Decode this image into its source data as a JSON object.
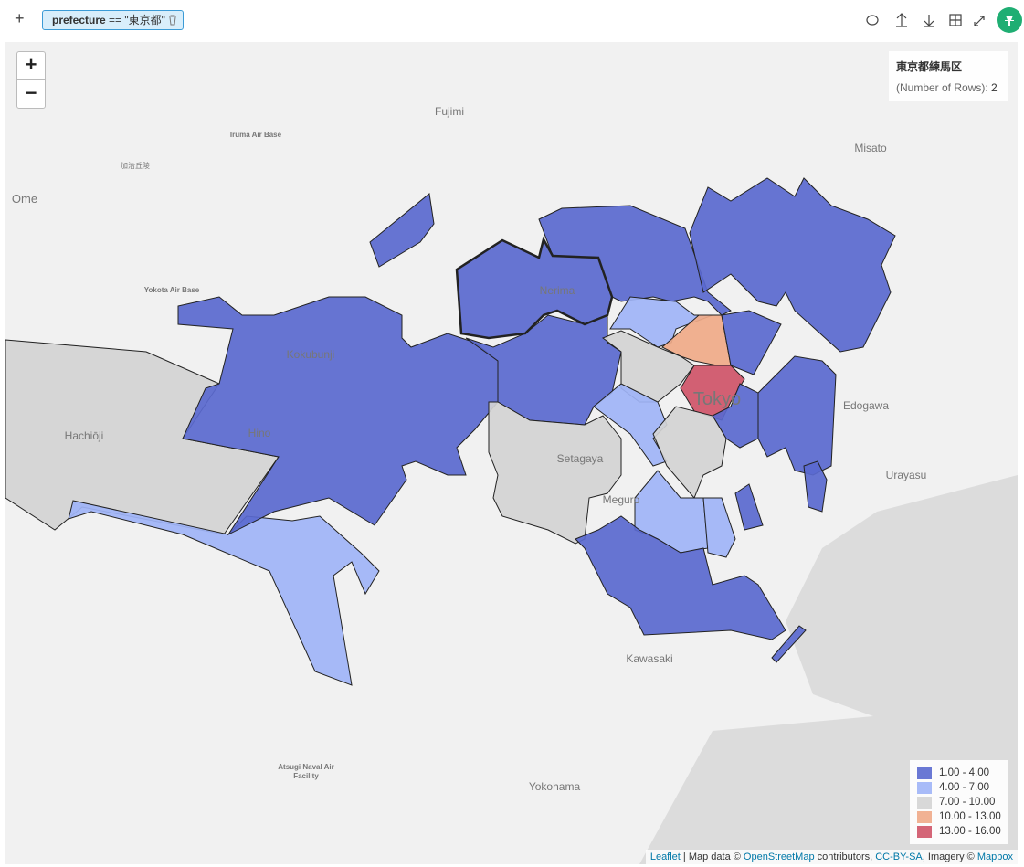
{
  "toolbar": {
    "add": "+",
    "filter": {
      "field": "prefecture",
      "operator": "==",
      "value": "\"東京都\""
    }
  },
  "map": {
    "zoom_in": "+",
    "zoom_out": "−",
    "tooltip": {
      "title": "東京都練馬区",
      "label": "(Number of Rows):",
      "value": "2"
    },
    "legend": [
      {
        "label": "1.00 - 4.00",
        "color": "#5a69cf"
      },
      {
        "label": "4.00 - 7.00",
        "color": "#9fb4f7"
      },
      {
        "label": "7.00 - 10.00",
        "color": "#d4d4d4"
      },
      {
        "label": "10.00 - 13.00",
        "color": "#f0aa88"
      },
      {
        "label": "13.00 - 16.00",
        "color": "#cf5468"
      }
    ],
    "places": [
      "Fujimi",
      "Iruma Air Base",
      "加治丘陵",
      "Ome",
      "Misato",
      "Yokota Air Base",
      "Nerima",
      "Kokubunji",
      "Hachiōji",
      "Hino",
      "Tokyo",
      "Edogawa",
      "Setagaya",
      "Urayasu",
      "Meguro",
      "Kawasaki",
      "Atsugi Naval Air",
      "Facility",
      "Yokohama"
    ],
    "attribution": {
      "leaflet": "Leaflet",
      "sep1": " | Map data © ",
      "osm": "OpenStreetMap",
      "sep2": " contributors, ",
      "license": "CC-BY-SA",
      "sep3": ", Imagery © ",
      "mapbox": "Mapbox"
    }
  }
}
